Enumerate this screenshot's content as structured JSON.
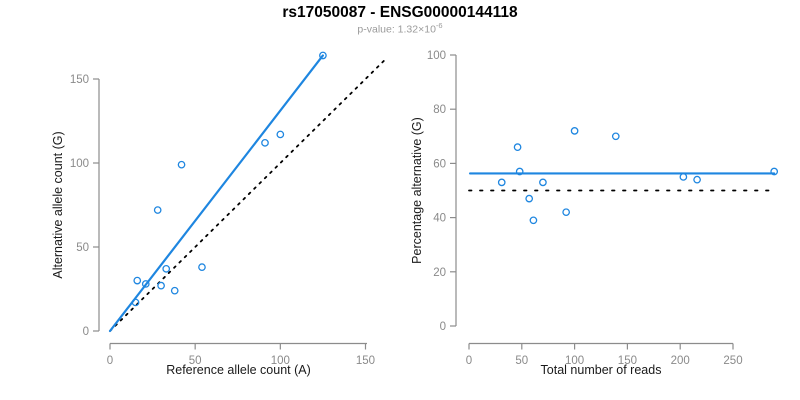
{
  "header": {
    "title": "rs17050087 - ENSG00000144118",
    "pvalue_base": "p-value: 1.32×10",
    "pvalue_exponent": "-6"
  },
  "colors": {
    "accent_blue": "#1E86E0",
    "dotted_black": "#000000",
    "axis_gray": "#8C8C8C",
    "tick_label_gray": "#8A8A8A",
    "axis_label_dark": "#1A1A1A",
    "subtitle_gray": "#9B9B9B"
  },
  "chart_data": [
    {
      "type": "scatter",
      "panel": "left",
      "xlabel": "Reference allele count (A)",
      "ylabel": "Alternative allele count (G)",
      "xticks": [
        0,
        50,
        100,
        150
      ],
      "yticks": [
        0,
        50,
        100,
        150
      ],
      "xlim": [
        0,
        163
      ],
      "ylim": [
        0,
        168
      ],
      "grid": false,
      "points": [
        [
          15,
          17
        ],
        [
          16,
          30
        ],
        [
          21,
          28
        ],
        [
          28,
          72
        ],
        [
          30,
          27
        ],
        [
          33,
          37
        ],
        [
          38,
          24
        ],
        [
          42,
          99
        ],
        [
          54,
          38
        ],
        [
          91,
          112
        ],
        [
          100,
          117
        ],
        [
          125,
          164
        ]
      ],
      "lines": [
        {
          "name": "regression-line",
          "x1": 0,
          "y1": 0,
          "x2": 125,
          "y2": 164,
          "style": "solid",
          "color": "accent"
        },
        {
          "name": "identity-line",
          "x1": 0,
          "y1": 0,
          "x2": 163,
          "y2": 163,
          "style": "dotted",
          "color": "black"
        }
      ]
    },
    {
      "type": "scatter",
      "panel": "right",
      "xlabel": "Total number of reads",
      "ylabel": "Percentage alternative (G)",
      "xticks": [
        0,
        50,
        100,
        150,
        200,
        250
      ],
      "yticks": [
        0,
        20,
        40,
        60,
        80,
        100
      ],
      "xlim": [
        0,
        290
      ],
      "ylim": [
        0,
        100
      ],
      "grid": false,
      "points": [
        [
          31,
          53
        ],
        [
          46,
          66
        ],
        [
          48,
          57
        ],
        [
          57,
          47
        ],
        [
          61,
          39
        ],
        [
          70,
          53
        ],
        [
          92,
          42
        ],
        [
          100,
          72
        ],
        [
          139,
          70
        ],
        [
          203,
          55
        ],
        [
          216,
          54
        ],
        [
          289,
          57
        ]
      ],
      "lines": [
        {
          "name": "mean-percentage-line",
          "x1": 1,
          "y1": 56.3,
          "x2": 289,
          "y2": 56.3,
          "style": "solid",
          "color": "accent"
        },
        {
          "name": "fifty-percent-line",
          "x1": 0,
          "y1": 50,
          "x2": 284,
          "y2": 50,
          "style": "dotted",
          "color": "black"
        }
      ]
    }
  ]
}
